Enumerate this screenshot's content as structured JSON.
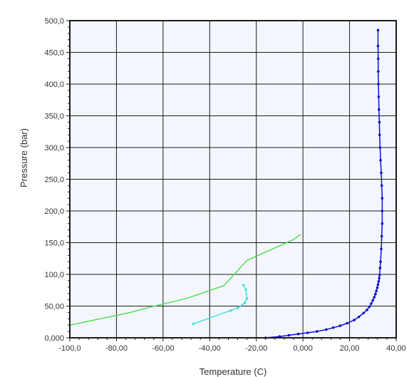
{
  "chart_data": {
    "type": "line",
    "xlabel": "Temperature (C)",
    "ylabel": "Pressure (bar)",
    "xlim": [
      -100,
      40
    ],
    "ylim": [
      0,
      500
    ],
    "grid": true,
    "plot_background": "#f3f7fd",
    "x_ticks": [
      {
        "value": -100,
        "label": "-100,0"
      },
      {
        "value": -80,
        "label": "-80,00"
      },
      {
        "value": -60,
        "label": "-60,00"
      },
      {
        "value": -40,
        "label": "-40,00"
      },
      {
        "value": -20,
        "label": "-20,00"
      },
      {
        "value": 0,
        "label": "0,000"
      },
      {
        "value": 20,
        "label": "20,00"
      },
      {
        "value": 40,
        "label": "40,00"
      }
    ],
    "y_ticks": [
      {
        "value": 0,
        "label": "0,000"
      },
      {
        "value": 50,
        "label": "50,00"
      },
      {
        "value": 100,
        "label": "100,0"
      },
      {
        "value": 150,
        "label": "150,0"
      },
      {
        "value": 200,
        "label": "200,0"
      },
      {
        "value": 250,
        "label": "250,0"
      },
      {
        "value": 300,
        "label": "300,0"
      },
      {
        "value": 350,
        "label": "350,0"
      },
      {
        "value": 400,
        "label": "400,0"
      },
      {
        "value": 450,
        "label": "450,0"
      },
      {
        "value": 500,
        "label": "500,0"
      }
    ],
    "series": [
      {
        "color": "#1010d0",
        "marker": true,
        "x": [
          -16,
          -10,
          -6,
          -2,
          2,
          6,
          10,
          13,
          16,
          19,
          22,
          24,
          26,
          27.5,
          28.5,
          29.3,
          30,
          30.6,
          31.1,
          31.5,
          31.9,
          32.2,
          32.5,
          32.7,
          32.9,
          33.1,
          33.3,
          33.6,
          33.8,
          34,
          34,
          34,
          33.8,
          33.6,
          33.3,
          33.1,
          32.9,
          32.8,
          32.6,
          32.5,
          32.4,
          32.3,
          32.3,
          32.2,
          32.2
        ],
        "y": [
          0,
          2,
          4,
          6,
          8,
          10,
          13,
          16,
          19,
          23,
          28,
          33,
          39,
          44,
          49,
          54,
          59,
          64,
          69,
          74,
          79,
          84,
          89,
          94,
          99,
          110,
          120,
          140,
          160,
          180,
          200,
          220,
          240,
          260,
          280,
          300,
          320,
          340,
          360,
          380,
          400,
          420,
          440,
          460,
          485
        ]
      },
      {
        "color": "#55dd55",
        "marker": false,
        "x": [
          -100,
          -74,
          -66,
          -50,
          -34,
          -24,
          -4,
          -1
        ],
        "y": [
          20,
          40,
          48,
          62,
          82,
          122,
          155,
          163
        ]
      },
      {
        "color": "#44dddd",
        "marker": true,
        "x": [
          -47,
          -31,
          -28,
          -25,
          -24,
          -24.5,
          -25.5
        ],
        "y": [
          22,
          43,
          47,
          55,
          62,
          76,
          83
        ]
      }
    ]
  }
}
